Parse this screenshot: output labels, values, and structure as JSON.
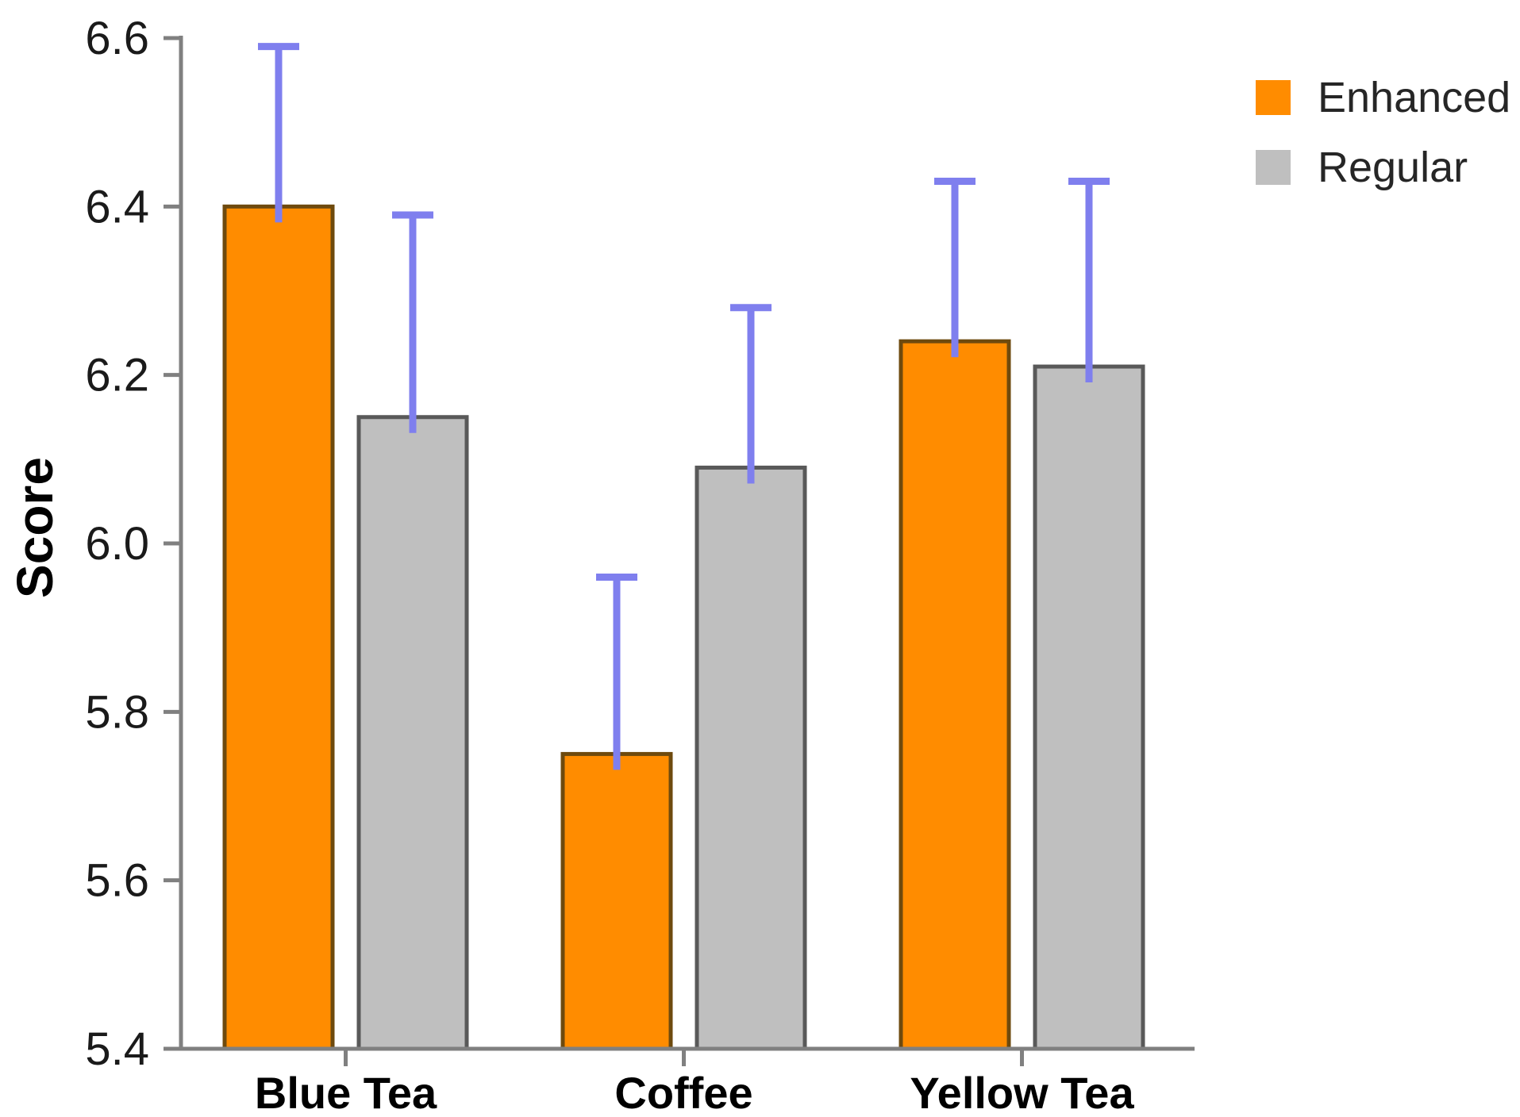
{
  "chart_data": {
    "type": "bar",
    "title": "",
    "xlabel": "",
    "ylabel": "Score",
    "categories": [
      "Blue Tea",
      "Coffee",
      "Yellow Tea"
    ],
    "series": [
      {
        "name": "Enhanced",
        "color": "#FF8C00",
        "border_color": "#6E4A0E",
        "values": [
          6.4,
          5.75,
          6.24
        ],
        "error_upper": [
          6.59,
          5.96,
          6.43
        ]
      },
      {
        "name": "Regular",
        "color": "#BFBFBF",
        "border_color": "#595959",
        "values": [
          6.15,
          6.09,
          6.21
        ],
        "error_upper": [
          6.39,
          6.28,
          6.43
        ]
      }
    ],
    "ylim": [
      5.4,
      6.6
    ],
    "ytick_step": 0.2,
    "ytick_labels": [
      "5.4",
      "5.6",
      "5.8",
      "6.0",
      "6.2",
      "6.4",
      "6.6"
    ],
    "grid": false,
    "legend_position": "top-right",
    "error_bar_color": "#7F7FEE",
    "axis_color": "#808080",
    "tick_label_color": "#1A1A1A"
  }
}
